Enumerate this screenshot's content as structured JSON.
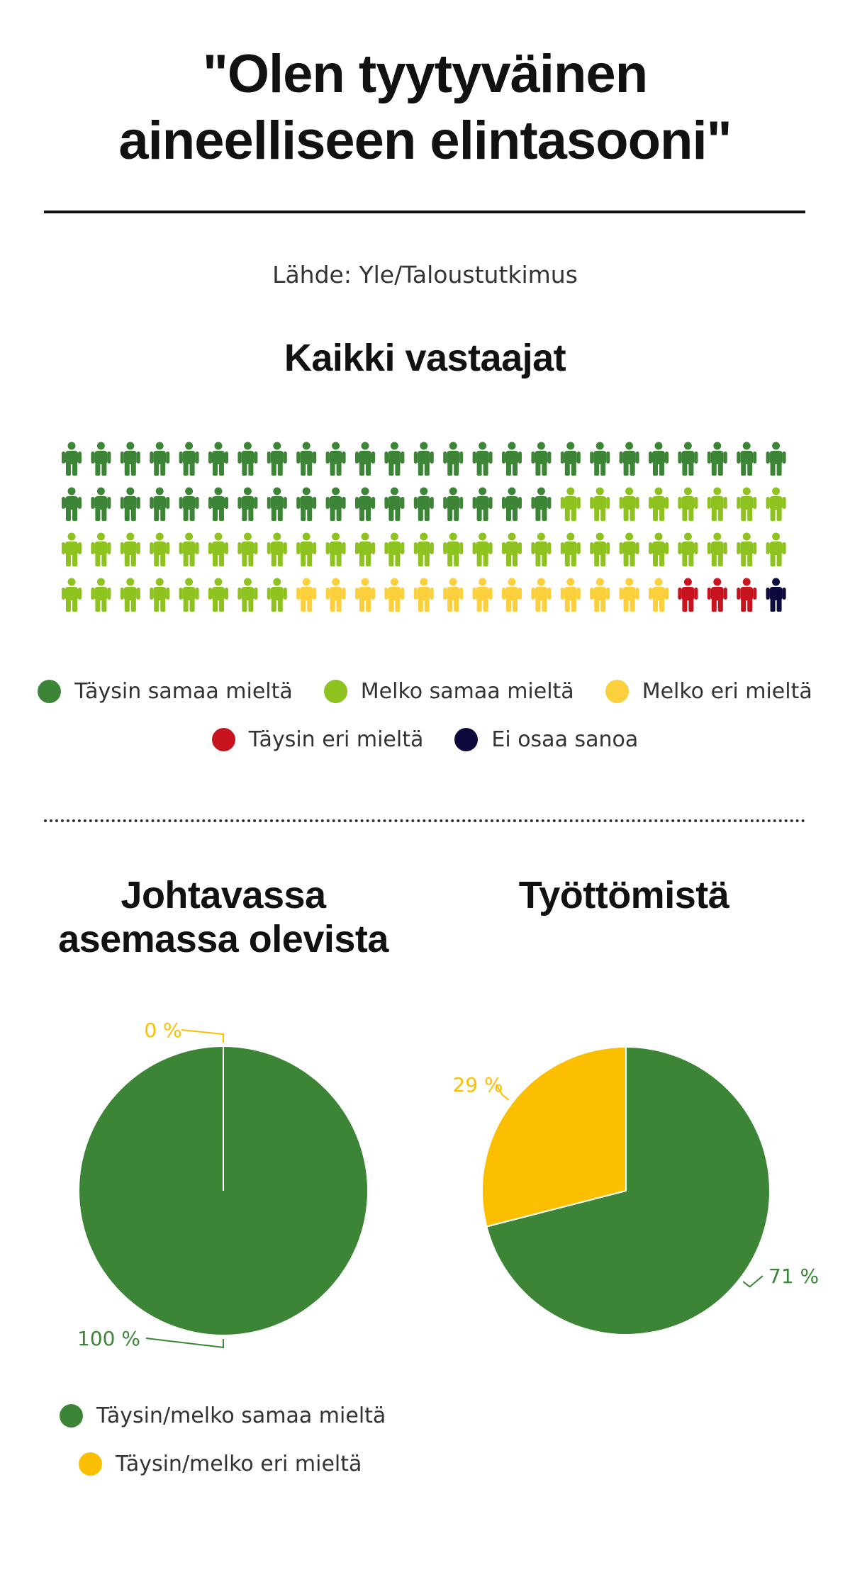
{
  "title_line1": "\"Olen tyytyväinen",
  "title_line2": "aineelliseen elintasooni\"",
  "source": "Lähde: Yle/Taloustutkimus",
  "colors": {
    "taysin_samaa": "#3d8536",
    "melko_samaa": "#8dc21f",
    "melko_eri": "#fbd03c",
    "taysin_eri": "#c8141e",
    "ei_osaa": "#0c0a3c",
    "pie_agree": "#3d8536",
    "pie_disagree": "#fbbf00"
  },
  "legend_all": [
    {
      "label": "Täysin samaa mieltä",
      "color": "#3d8536"
    },
    {
      "label": "Melko samaa mieltä",
      "color": "#8dc21f"
    },
    {
      "label": "Melko eri mieltä",
      "color": "#fbd03c"
    },
    {
      "label": "Täysin eri mieltä",
      "color": "#c8141e"
    },
    {
      "label": "Ei osaa sanoa",
      "color": "#0c0a3c"
    }
  ],
  "legend_pies": [
    {
      "label": "Täysin/melko samaa mieltä",
      "color": "#3d8536"
    },
    {
      "label": "Täysin/melko eri mieltä",
      "color": "#fbbf00"
    }
  ],
  "chart_data": [
    {
      "type": "waffle",
      "title": "Kaikki vastaajat",
      "unit": "icons (1 icon = 1 %)",
      "rows": 4,
      "columns": 25,
      "categories": [
        "Täysin samaa mieltä",
        "Melko samaa mieltä",
        "Melko eri mieltä",
        "Täysin eri mieltä",
        "Ei osaa sanoa"
      ],
      "values": [
        42,
        41,
        13,
        3,
        1
      ]
    },
    {
      "type": "pie",
      "title": "Johtavassa asemassa olevista",
      "categories": [
        "Täysin/melko samaa mieltä",
        "Täysin/melko eri mieltä"
      ],
      "values": [
        100,
        0
      ],
      "labels": [
        "100 %",
        "0 %"
      ]
    },
    {
      "type": "pie",
      "title": "Työttömistä",
      "categories": [
        "Täysin/melko samaa mieltä",
        "Täysin/melko eri mieltä"
      ],
      "values": [
        71,
        29
      ],
      "labels": [
        "71 %",
        "29 %"
      ]
    }
  ]
}
